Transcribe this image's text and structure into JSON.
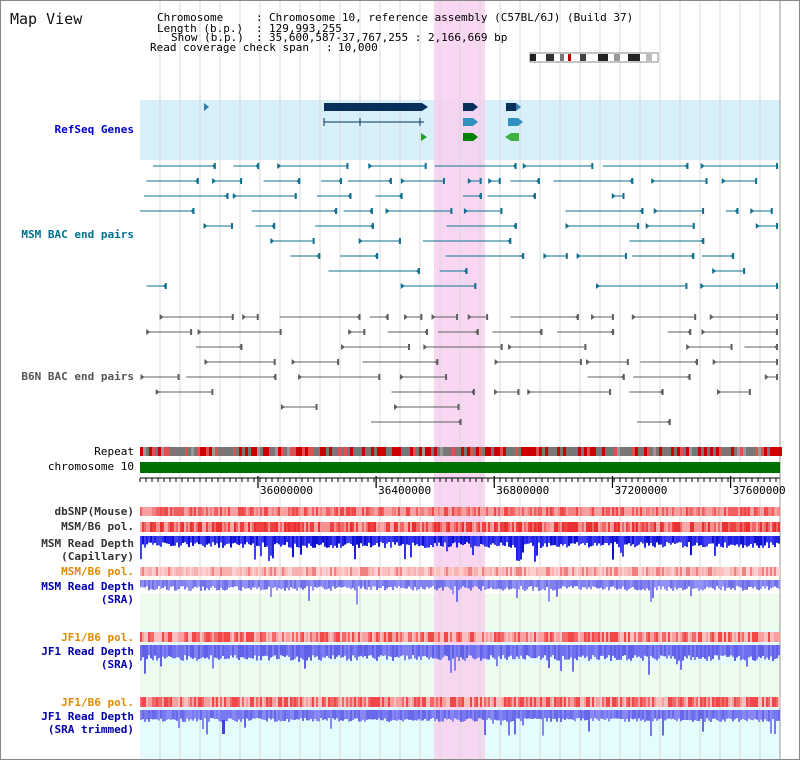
{
  "title": "Map View",
  "info": {
    "chromosome_key": "Chromosome",
    "chromosome_val": "Chromosome 10, reference assembly (C57BL/6J) (Build 37)",
    "length_key": "Length (b.p.)",
    "length_val": "129,993,255",
    "show_key": "Show (b.p.)",
    "show_val": "35,600,587-37,767,255 : 2,166,669 bp",
    "span_key": "Read coverage check span",
    "span_val": "10,000",
    "sep": ":"
  },
  "tracks": {
    "refseq": "RefSeq Genes",
    "msm_bac": "MSM BAC end pairs",
    "b6n_bac": "B6N BAC end pairs",
    "repeat": "Repeat",
    "chromosome": "chromosome 10",
    "dbsnp": "dbSNP(Mouse)",
    "msm_pol": "MSM/B6 pol.",
    "msm_depth_cap_1": "MSM Read Depth",
    "msm_depth_cap_2": "(Capillary)",
    "msm_pol_sra": "MSM/B6 pol.",
    "msm_depth_sra_1": "MSM Read Depth",
    "msm_depth_sra_2": "(SRA)",
    "jf1_pol": "JF1/B6 pol.",
    "jf1_depth_1": "JF1 Read Depth",
    "jf1_depth_2": "(SRA)",
    "jf1_pol_t": "JF1/B6 pol.",
    "jf1_depth_t_1": "JF1 Read Depth",
    "jf1_depth_t_2": "(SRA trimmed)"
  },
  "axis": {
    "ticks": [
      {
        "value": 36000000,
        "label": "36000000"
      },
      {
        "value": 36400000,
        "label": "36400000"
      },
      {
        "value": 36800000,
        "label": "36800000"
      },
      {
        "value": 37200000,
        "label": "37200000"
      },
      {
        "value": 37600000,
        "label": "37600000"
      }
    ]
  },
  "colors": {
    "refseq_label": "#0000cc",
    "msm_bac_label": "#007090",
    "b6n_bac_label": "#555555",
    "orange_label": "#e08a00",
    "blue_label": "#0000aa",
    "highlight": "#f8d0f0",
    "refseq_bg": "#d8f0fa",
    "sra_bg": "#e4fcfc",
    "green_bg": "#eefcee",
    "chrom_bar": "#007000"
  }
}
